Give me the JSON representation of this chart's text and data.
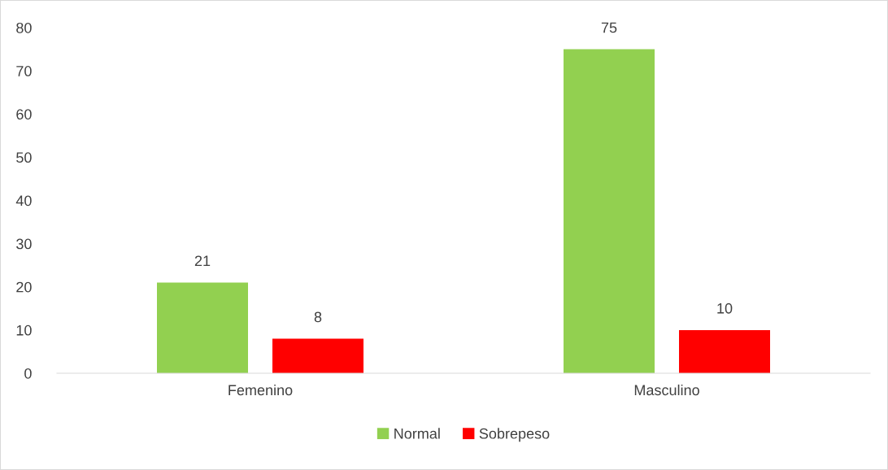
{
  "chart_data": {
    "type": "bar",
    "categories": [
      "Femenino",
      "Masculino"
    ],
    "series": [
      {
        "name": "Normal",
        "color": "#92d050",
        "values": [
          21,
          75
        ]
      },
      {
        "name": "Sobrepeso",
        "color": "#ff0000",
        "values": [
          8,
          10
        ]
      }
    ],
    "ylim": [
      0,
      80
    ],
    "yticks": [
      0,
      10,
      20,
      30,
      40,
      50,
      60,
      70,
      80
    ],
    "grid": false,
    "legend": "bottom",
    "data_labels": true
  }
}
